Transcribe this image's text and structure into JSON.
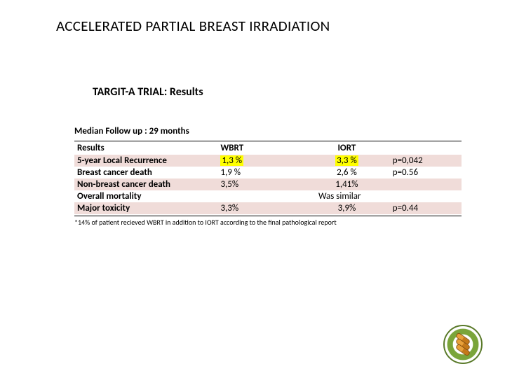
{
  "title": "ACCELERATED PARTIAL BREAST IRRADIATION",
  "subtitle": "TARGIT-A  TRIAL:  Results",
  "followup": "Median Follow up : 29 months",
  "table": {
    "bg_pink": "#f0dcd9",
    "highlight": "#ffff00",
    "headers": {
      "results": "Results",
      "wbrt": "WBRT",
      "iort": "IORT",
      "pval": ""
    },
    "rows": [
      {
        "label": "5-year Local Recurrence",
        "wbrt": "1,3 %",
        "iort": "3,3 %",
        "pval": "p=0,042",
        "pink": true,
        "hl_wbrt": true,
        "hl_iort": true
      },
      {
        "label": "Breast cancer death",
        "wbrt": "1,9 %",
        "iort": "2,6 %",
        "pval": "p=0.56",
        "pink": false
      },
      {
        "label": "Non-breast cancer death",
        "wbrt": "3,5%",
        "iort": "1,41%",
        "pval": "",
        "pink": true
      },
      {
        "label": "Overall mortality",
        "wbrt": "",
        "iort": "",
        "pval": "",
        "pink": false,
        "span_text": "Was similar"
      },
      {
        "label": "Major  toxicity",
        "wbrt": "3,3%",
        "iort": "3,9%",
        "pval": "p=0.44",
        "pink": true
      }
    ]
  },
  "footnote": "*14% of patient recieved WBRT in addition to IORT according to the final pathological report"
}
